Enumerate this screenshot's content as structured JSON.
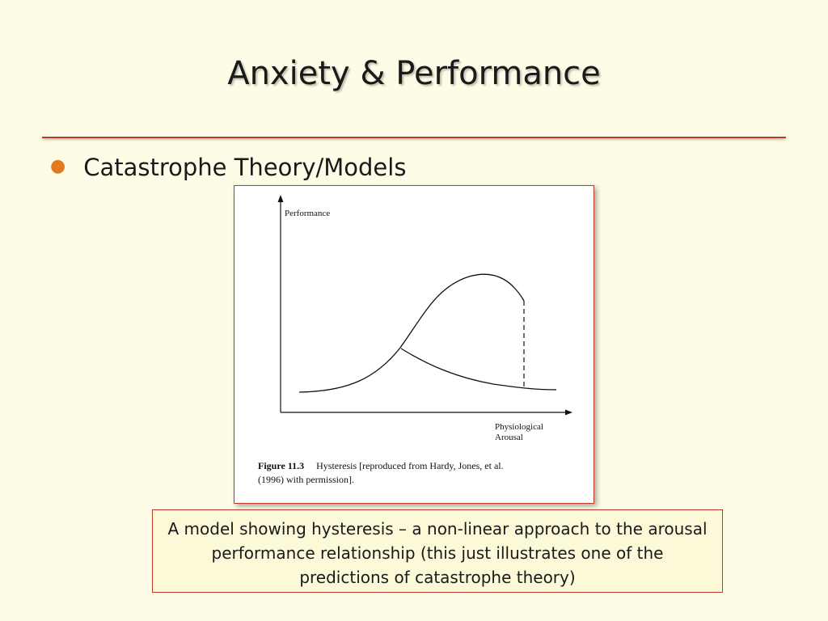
{
  "slide": {
    "title": "Anxiety & Performance",
    "bullet": "Catastrophe Theory/Models",
    "bullet_color": "#e07b20",
    "rule_color": "#c0392b",
    "background": "#fdfce6"
  },
  "figure": {
    "y_axis_label": "Performance",
    "x_axis_label_line1": "Physiological",
    "x_axis_label_line2": "Arousal",
    "caption_label": "Figure 11.3",
    "caption_line1": "Hysteresis [reproduced from Hardy, Jones, et al.",
    "caption_line2": "(1996) with permission].",
    "curves": [
      "rising-curve",
      "falling-curve",
      "dashed-drop"
    ]
  },
  "note": {
    "text": "A model showing hysteresis – a non-linear approach to the arousal performance relationship (this just illustrates one of the predictions of catastrophe theory)"
  }
}
